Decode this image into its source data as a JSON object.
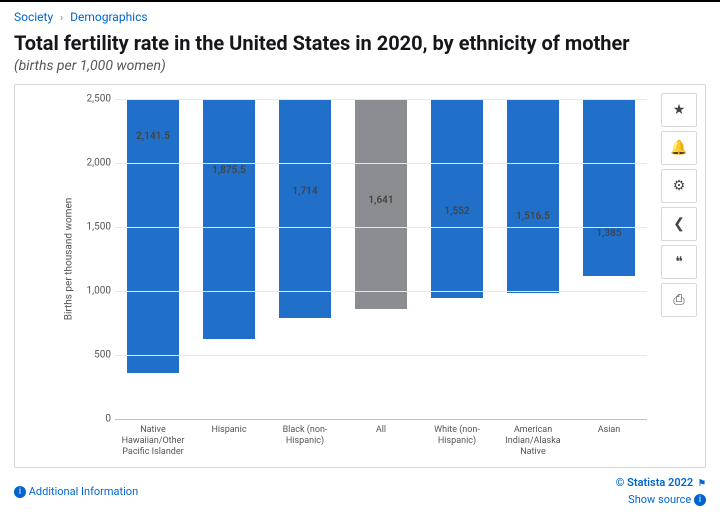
{
  "breadcrumb": {
    "lvl1": "Society",
    "lvl2": "Demographics"
  },
  "title": "Total fertility rate in the United States in 2020, by ethnicity of mother",
  "subtitle": "(births per 1,000 women)",
  "chart": {
    "type": "bar",
    "ylabel": "Births per thousand women",
    "ylim": [
      0,
      2500
    ],
    "ytick_step": 500,
    "yticks": [
      "0",
      "500",
      "1,000",
      "1,500",
      "2,000",
      "2,500"
    ],
    "grid_color": "#e8e8e8",
    "background_color": "#ffffff",
    "default_bar_color": "#206fc9",
    "highlight_bar_color": "#8a8d91",
    "label_fontsize": 10,
    "bar_width": 0.68,
    "series": [
      {
        "category": "Native Hawaiian/Other Pacific Islander",
        "value": 2141.5,
        "label": "2,141.5",
        "color": "#206fc9"
      },
      {
        "category": "Hispanic",
        "value": 1875.5,
        "label": "1,875.5",
        "color": "#206fc9"
      },
      {
        "category": "Black (non-Hispanic)",
        "value": 1714,
        "label": "1,714",
        "color": "#206fc9"
      },
      {
        "category": "All",
        "value": 1641,
        "label": "1,641",
        "color": "#8a8d91"
      },
      {
        "category": "White (non-Hispanic)",
        "value": 1552,
        "label": "1,552",
        "color": "#206fc9"
      },
      {
        "category": "American Indian/Alaska Native",
        "value": 1516.5,
        "label": "1,516.5",
        "color": "#206fc9"
      },
      {
        "category": "Asian",
        "value": 1385,
        "label": "1,385",
        "color": "#206fc9"
      }
    ]
  },
  "toolbar": {
    "btns": [
      {
        "name": "favorite-icon",
        "glyph": "★"
      },
      {
        "name": "bell-icon",
        "glyph": "🔔"
      },
      {
        "name": "gear-icon",
        "glyph": "⚙"
      },
      {
        "name": "share-icon",
        "glyph": "❮"
      },
      {
        "name": "quote-icon",
        "glyph": "❝"
      },
      {
        "name": "print-icon",
        "glyph": "⎙"
      }
    ]
  },
  "footer": {
    "additional_info": "Additional Information",
    "copyright": "© Statista 2022",
    "show_source": "Show source"
  }
}
